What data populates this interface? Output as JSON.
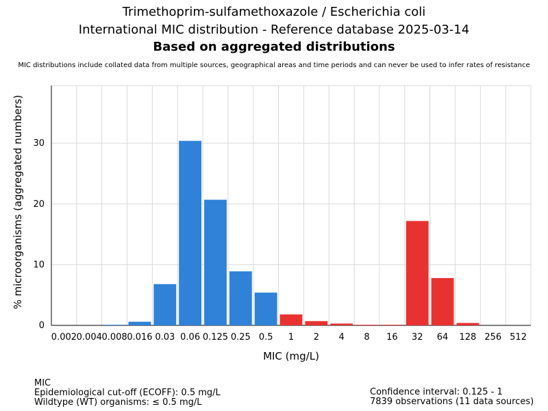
{
  "title": {
    "line1": "Trimethoprim-sulfamethoxazole / Escherichia coli",
    "line2": "International MIC distribution - Reference database 2025-03-14",
    "line3": "Based on aggregated distributions",
    "note": "MIC distributions include collated data from multiple sources, geographical areas and time periods and can never be used to infer rates of resistance"
  },
  "footer": {
    "left": [
      "MIC",
      "Epidemiological cut-off (ECOFF): 0.5 mg/L",
      "Wildtype (WT) organisms: ≤ 0.5 mg/L"
    ],
    "right": [
      "Confidence interval: 0.125 - 1",
      "7839 observations (11 data sources)"
    ]
  },
  "colors": {
    "wildtype": "#2f82d8",
    "nonwildtype": "#e83232",
    "grid": "#d9d9d9"
  },
  "chart_data": {
    "type": "bar",
    "xlabel": "MIC (mg/L)",
    "ylabel": "% microorganisms (aggregated numbers)",
    "ylim": [
      0,
      39.5
    ],
    "yticks": [
      0,
      10,
      20,
      30
    ],
    "grid": true,
    "categories": [
      "0.002",
      "0.004",
      "0.008",
      "0.016",
      "0.03",
      "0.06",
      "0.125",
      "0.25",
      "0.5",
      "1",
      "2",
      "4",
      "8",
      "16",
      "32",
      "64",
      "128",
      "256",
      "512"
    ],
    "values": [
      0,
      0,
      0.1,
      0.6,
      6.8,
      30.4,
      20.7,
      8.9,
      5.4,
      1.8,
      0.7,
      0.3,
      0.1,
      0.1,
      17.2,
      7.8,
      0.4,
      0,
      0
    ],
    "bar_groups": [
      "wildtype",
      "wildtype",
      "wildtype",
      "wildtype",
      "wildtype",
      "wildtype",
      "wildtype",
      "wildtype",
      "wildtype",
      "nonwildtype",
      "nonwildtype",
      "nonwildtype",
      "nonwildtype",
      "nonwildtype",
      "nonwildtype",
      "nonwildtype",
      "nonwildtype",
      "nonwildtype",
      "nonwildtype"
    ]
  }
}
